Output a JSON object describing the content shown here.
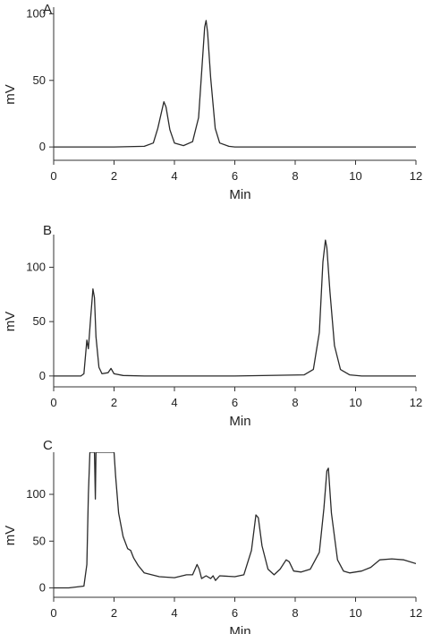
{
  "chart_data": [
    {
      "type": "line",
      "panel_label": "A",
      "xlabel": "Min",
      "ylabel": "mV",
      "xlim": [
        0,
        12
      ],
      "ylim": [
        -10,
        105
      ],
      "xticks": [
        0,
        2,
        4,
        6,
        8,
        10,
        12
      ],
      "yticks": [
        0,
        50,
        100
      ],
      "grid": false,
      "series": [
        {
          "x": [
            0,
            1,
            2,
            3,
            3.3,
            3.45,
            3.6,
            3.65,
            3.72,
            3.85,
            4.0,
            4.3,
            4.6,
            4.8,
            4.92,
            5.0,
            5.05,
            5.1,
            5.2,
            5.35,
            5.5,
            5.8,
            6,
            8,
            10,
            12
          ],
          "y": [
            0,
            0,
            0,
            0.5,
            3,
            14,
            29,
            34,
            30,
            13,
            3,
            1,
            4,
            22,
            62,
            90,
            95,
            86,
            52,
            14,
            3,
            0.5,
            0,
            0,
            0,
            0
          ]
        }
      ]
    },
    {
      "type": "line",
      "panel_label": "B",
      "xlabel": "Min",
      "ylabel": "mV",
      "xlim": [
        0,
        12
      ],
      "ylim": [
        -10,
        130
      ],
      "xticks": [
        0,
        2,
        4,
        6,
        8,
        10,
        12
      ],
      "yticks": [
        0,
        50,
        100
      ],
      "grid": false,
      "series": [
        {
          "x": [
            0,
            0.9,
            1.0,
            1.1,
            1.15,
            1.22,
            1.3,
            1.35,
            1.4,
            1.5,
            1.6,
            1.8,
            1.9,
            2.0,
            2.3,
            3,
            6,
            8.3,
            8.6,
            8.8,
            8.92,
            9.0,
            9.05,
            9.15,
            9.3,
            9.5,
            9.8,
            10.2,
            12
          ],
          "y": [
            0,
            0,
            2,
            33,
            25,
            52,
            80,
            72,
            36,
            8,
            2,
            3,
            7,
            2,
            0.5,
            0,
            0,
            1,
            6,
            40,
            105,
            125,
            118,
            78,
            28,
            6,
            1,
            0,
            0
          ]
        }
      ]
    },
    {
      "type": "line",
      "panel_label": "C",
      "xlabel": "Min",
      "ylabel": "mV",
      "xlim": [
        0,
        12
      ],
      "ylim": [
        -10,
        145
      ],
      "xticks": [
        0,
        2,
        4,
        6,
        8,
        10,
        12
      ],
      "yticks": [
        0,
        50,
        100
      ],
      "grid": false,
      "series": [
        {
          "x": [
            0,
            0.5,
            1.0,
            1.1,
            1.15,
            1.2,
            1.3,
            1.35,
            1.38,
            1.4,
            1.45,
            1.5,
            1.6,
            1.8,
            1.95,
            2.0,
            2.05,
            2.15,
            2.3,
            2.45,
            2.55,
            2.65,
            2.8,
            3.0,
            3.5,
            4.0,
            4.4,
            4.6,
            4.75,
            4.82,
            4.9,
            5.05,
            5.2,
            5.28,
            5.36,
            5.5,
            6.0,
            6.3,
            6.55,
            6.7,
            6.78,
            6.9,
            7.1,
            7.3,
            7.5,
            7.7,
            7.8,
            7.95,
            8.2,
            8.5,
            8.8,
            8.95,
            9.05,
            9.1,
            9.2,
            9.4,
            9.6,
            9.8,
            10.2,
            10.5,
            10.8,
            11.2,
            11.6,
            12
          ],
          "y": [
            0,
            0,
            2,
            25,
            100,
            145,
            145,
            145,
            95,
            145,
            145,
            145,
            145,
            145,
            145,
            145,
            120,
            80,
            55,
            42,
            40,
            32,
            24,
            16,
            12,
            11,
            14,
            14,
            25,
            20,
            10,
            13,
            10,
            13,
            8,
            13,
            12,
            14,
            40,
            78,
            75,
            45,
            20,
            14,
            20,
            30,
            28,
            18,
            17,
            20,
            38,
            85,
            125,
            128,
            80,
            30,
            18,
            16,
            18,
            22,
            30,
            31,
            30,
            26
          ]
        }
      ]
    }
  ]
}
